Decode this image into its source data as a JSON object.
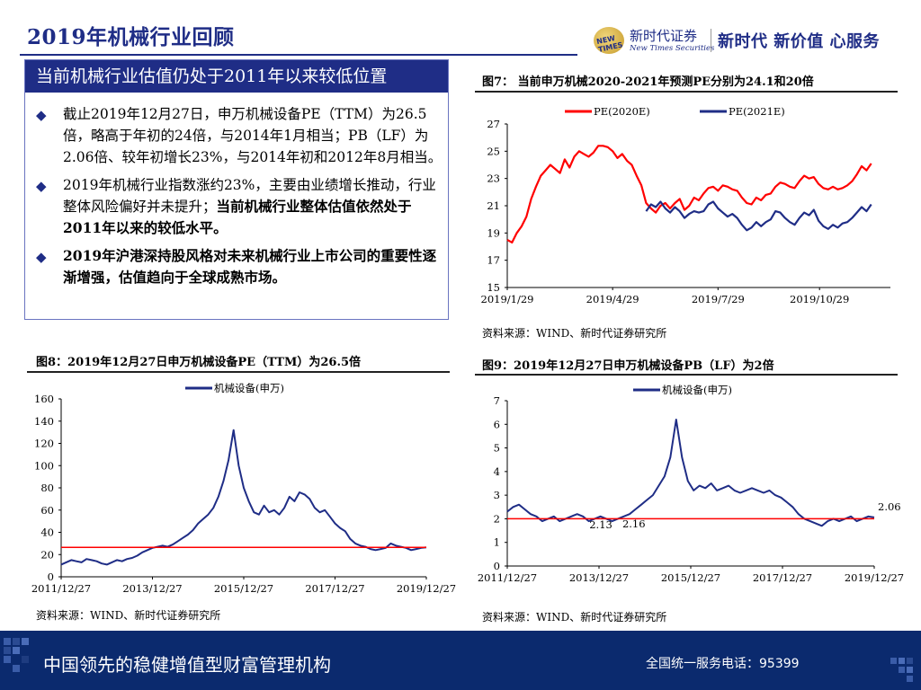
{
  "page": {
    "title": "2019年机械行业回顾",
    "logo_cn": "新时代证券",
    "logo_en": "New Times Securities",
    "logo_seal": "NEW TIMES",
    "slogan": "新时代 新价值 心服务"
  },
  "textbox": {
    "header": "当前机械行业估值仍处于2011年以来较低位置",
    "bullets": [
      {
        "text": "截止2019年12月27日，申万机械设备PE（TTM）为26.5倍，略高于年初的24倍，与2014年1月相当；PB（LF）为2.06倍、较年初增长23%，与2014年初和2012年8月相当。",
        "bold": ""
      },
      {
        "text": "2019年机械行业指数涨约23%，主要由业绩增长推动，行业整体风险偏好并未提升；",
        "bold": "当前机械行业整体估值依然处于2011年以来的较低水平。"
      },
      {
        "text": "",
        "bold": "2019年沪港深持股风格对未来机械行业上市公司的重要性逐渐增强，估值趋向于全球成熟市场。"
      }
    ]
  },
  "figures": {
    "fig7": {
      "title": "图7：  当前申万机械2020-2021年预测PE分别为24.1和20倍",
      "source": "资料来源：WIND、新时代证券研究所"
    },
    "fig8": {
      "title": "图8：2019年12月27日申万机械设备PE（TTM）为26.5倍",
      "source": "资料来源：WIND、新时代证券研究所"
    },
    "fig9": {
      "title": "图9：2019年12月27日申万机械设备PB（LF）为2倍",
      "source": "资料来源：WIND、新时代证券研究所"
    }
  },
  "footer": {
    "slogan": "中国领先的稳健增值型财富管理机构",
    "phone": "全国统一服务电话：95399"
  },
  "chart_data": [
    {
      "id": "fig7",
      "type": "line",
      "title": "当前申万机械2020-2021年预测PE分别为24.1和20倍",
      "xlabel": "",
      "ylabel": "",
      "x_ticks": [
        "2019/1/29",
        "2019/4/29",
        "2019/7/29",
        "2019/10/29"
      ],
      "x_tick_pos": [
        0,
        0.275,
        0.55,
        0.815
      ],
      "ylim": [
        15,
        27
      ],
      "y_ticks": [
        15,
        17,
        19,
        21,
        23,
        25,
        27
      ],
      "legend": "top",
      "series": [
        {
          "name": "PE(2020E)",
          "color": "#ff0000",
          "values": [
            18.5,
            18.3,
            19,
            19.5,
            20.2,
            21.5,
            22.4,
            23.2,
            23.6,
            24,
            23.7,
            23.4,
            24.4,
            23.8,
            24.6,
            25,
            24.8,
            24.6,
            24.9,
            25.4,
            25.4,
            25.3,
            25,
            24.5,
            24.8,
            24.3,
            24,
            23.2,
            22.5,
            21.2,
            20.8,
            20.5,
            21,
            21.2,
            20.8,
            21.2,
            21.5,
            20.7,
            21,
            21.6,
            21.4,
            21.9,
            22.3,
            22.4,
            22.1,
            22.5,
            22.4,
            22.2,
            22.1,
            21.6,
            21.2,
            21.1,
            21.6,
            21.4,
            21.8,
            21.9,
            22.4,
            22.7,
            22.6,
            22.4,
            22.3,
            22.8,
            23.2,
            23,
            23.1,
            22.6,
            22.3,
            22.2,
            22.4,
            22.2,
            22.3,
            22.5,
            22.8,
            23.3,
            23.9,
            23.6,
            24.1
          ]
        },
        {
          "name": "PE(2021E)",
          "color": "#1f2d86",
          "values": [
            null,
            null,
            null,
            null,
            null,
            null,
            null,
            null,
            null,
            null,
            null,
            null,
            null,
            null,
            null,
            null,
            null,
            null,
            null,
            null,
            null,
            null,
            null,
            null,
            null,
            null,
            null,
            null,
            null,
            20.6,
            21.1,
            20.9,
            21.3,
            20.8,
            20.5,
            20.9,
            20.6,
            20.1,
            20.4,
            20.6,
            20.5,
            20.6,
            21.1,
            21.3,
            20.8,
            20.5,
            20.2,
            20.4,
            20.1,
            19.6,
            19.2,
            19.4,
            19.8,
            19.5,
            19.8,
            20,
            20.6,
            20.5,
            20.1,
            19.8,
            19.6,
            20.1,
            20.5,
            20.3,
            20.7,
            19.9,
            19.5,
            19.3,
            19.6,
            19.4,
            19.7,
            19.8,
            20.1,
            20.5,
            20.9,
            20.6,
            21.1
          ]
        }
      ]
    },
    {
      "id": "fig8",
      "type": "line",
      "title": "2019年12月27日申万机械设备PE（TTM）为26.5倍",
      "x_ticks": [
        "2011/12/27",
        "2013/12/27",
        "2015/12/27",
        "2017/12/27",
        "2019/12/27"
      ],
      "x_tick_pos": [
        0,
        0.25,
        0.5,
        0.75,
        1
      ],
      "ylim": [
        0,
        160
      ],
      "y_ticks": [
        0,
        20,
        40,
        60,
        80,
        100,
        120,
        140,
        160
      ],
      "legend": "top",
      "series": [
        {
          "name": "机械设备(申万)",
          "color": "#1f2d86",
          "values": [
            11,
            13,
            15,
            14,
            13,
            16,
            15,
            14,
            12,
            11,
            13,
            15,
            14,
            16,
            17,
            19,
            22,
            24,
            26,
            27,
            28,
            27,
            29,
            32,
            35,
            38,
            42,
            48,
            52,
            56,
            62,
            72,
            86,
            105,
            132,
            100,
            80,
            68,
            58,
            56,
            64,
            58,
            60,
            56,
            62,
            72,
            68,
            76,
            74,
            70,
            62,
            58,
            60,
            54,
            48,
            44,
            41,
            34,
            30,
            28,
            27,
            25,
            24,
            25,
            26,
            30,
            28,
            27,
            26,
            24,
            25,
            26,
            26.5
          ]
        },
        {
          "name": "reference",
          "color": "#ff0000",
          "values": [
            26.5,
            26.5
          ]
        }
      ]
    },
    {
      "id": "fig9",
      "type": "line",
      "title": "2019年12月27日申万机械设备PB（LF）为2倍",
      "x_ticks": [
        "2011/12/27",
        "2013/12/27",
        "2015/12/27",
        "2017/12/27",
        "2019/12/27"
      ],
      "x_tick_pos": [
        0,
        0.25,
        0.5,
        0.75,
        1
      ],
      "ylim": [
        0,
        7
      ],
      "y_ticks": [
        0,
        1,
        2,
        3,
        4,
        5,
        6,
        7
      ],
      "legend": "top",
      "annotations": [
        "2.13",
        "2.16",
        "2.06"
      ],
      "series": [
        {
          "name": "机械设备(申万)",
          "color": "#1f2d86",
          "values": [
            2.3,
            2.5,
            2.6,
            2.4,
            2.2,
            2.1,
            1.9,
            2.0,
            2.1,
            1.9,
            2.0,
            2.1,
            2.2,
            2.1,
            1.9,
            2.0,
            2.1,
            2.0,
            1.9,
            2.0,
            2.1,
            2.2,
            2.4,
            2.6,
            2.8,
            3.0,
            3.4,
            3.8,
            4.6,
            6.2,
            4.6,
            3.6,
            3.2,
            3.4,
            3.3,
            3.5,
            3.2,
            3.3,
            3.4,
            3.2,
            3.1,
            3.2,
            3.3,
            3.2,
            3.1,
            3.2,
            3.0,
            2.9,
            2.7,
            2.5,
            2.2,
            2.0,
            1.9,
            1.8,
            1.7,
            1.9,
            2.0,
            1.9,
            2.0,
            2.1,
            1.9,
            2.0,
            2.1,
            2.06
          ]
        },
        {
          "name": "reference",
          "color": "#ff0000",
          "values": [
            2.0,
            2.0
          ]
        }
      ]
    }
  ]
}
